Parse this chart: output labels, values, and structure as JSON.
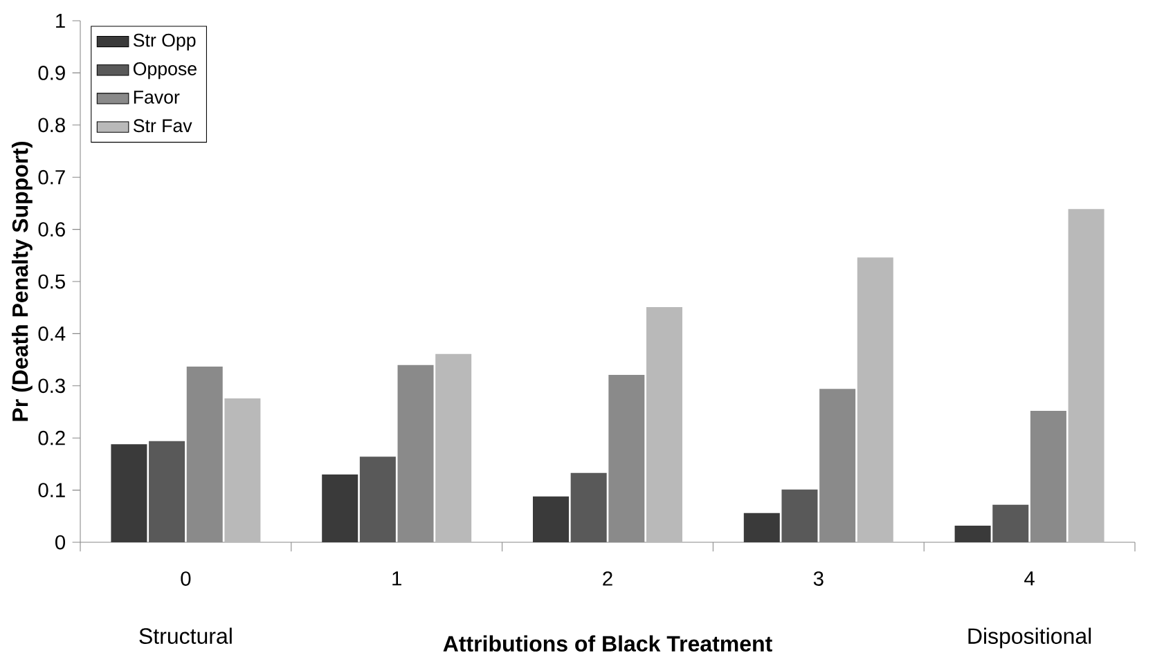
{
  "chart_data": {
    "type": "bar",
    "xlabel": "Attributions of Black Treatment",
    "ylabel": "Pr (Death Penalty Support)",
    "categories": [
      "0",
      "1",
      "2",
      "3",
      "4"
    ],
    "series": [
      {
        "name": "Str Opp",
        "color": "#3a3a3a",
        "values": [
          0.188,
          0.13,
          0.088,
          0.056,
          0.032
        ]
      },
      {
        "name": "Oppose",
        "color": "#595959",
        "values": [
          0.194,
          0.164,
          0.133,
          0.101,
          0.072
        ]
      },
      {
        "name": "Favor",
        "color": "#8a8a8a",
        "values": [
          0.337,
          0.34,
          0.321,
          0.294,
          0.252
        ]
      },
      {
        "name": "Str Fav",
        "color": "#b9b9b9",
        "values": [
          0.276,
          0.361,
          0.451,
          0.546,
          0.639
        ]
      }
    ],
    "ylim": [
      0,
      1
    ],
    "yticks": [
      0,
      0.1,
      0.2,
      0.3,
      0.4,
      0.5,
      0.6,
      0.7,
      0.8,
      0.9,
      1
    ],
    "annotations": [
      "Structural",
      "Dispositional"
    ],
    "legend": "top left",
    "grid": false
  }
}
